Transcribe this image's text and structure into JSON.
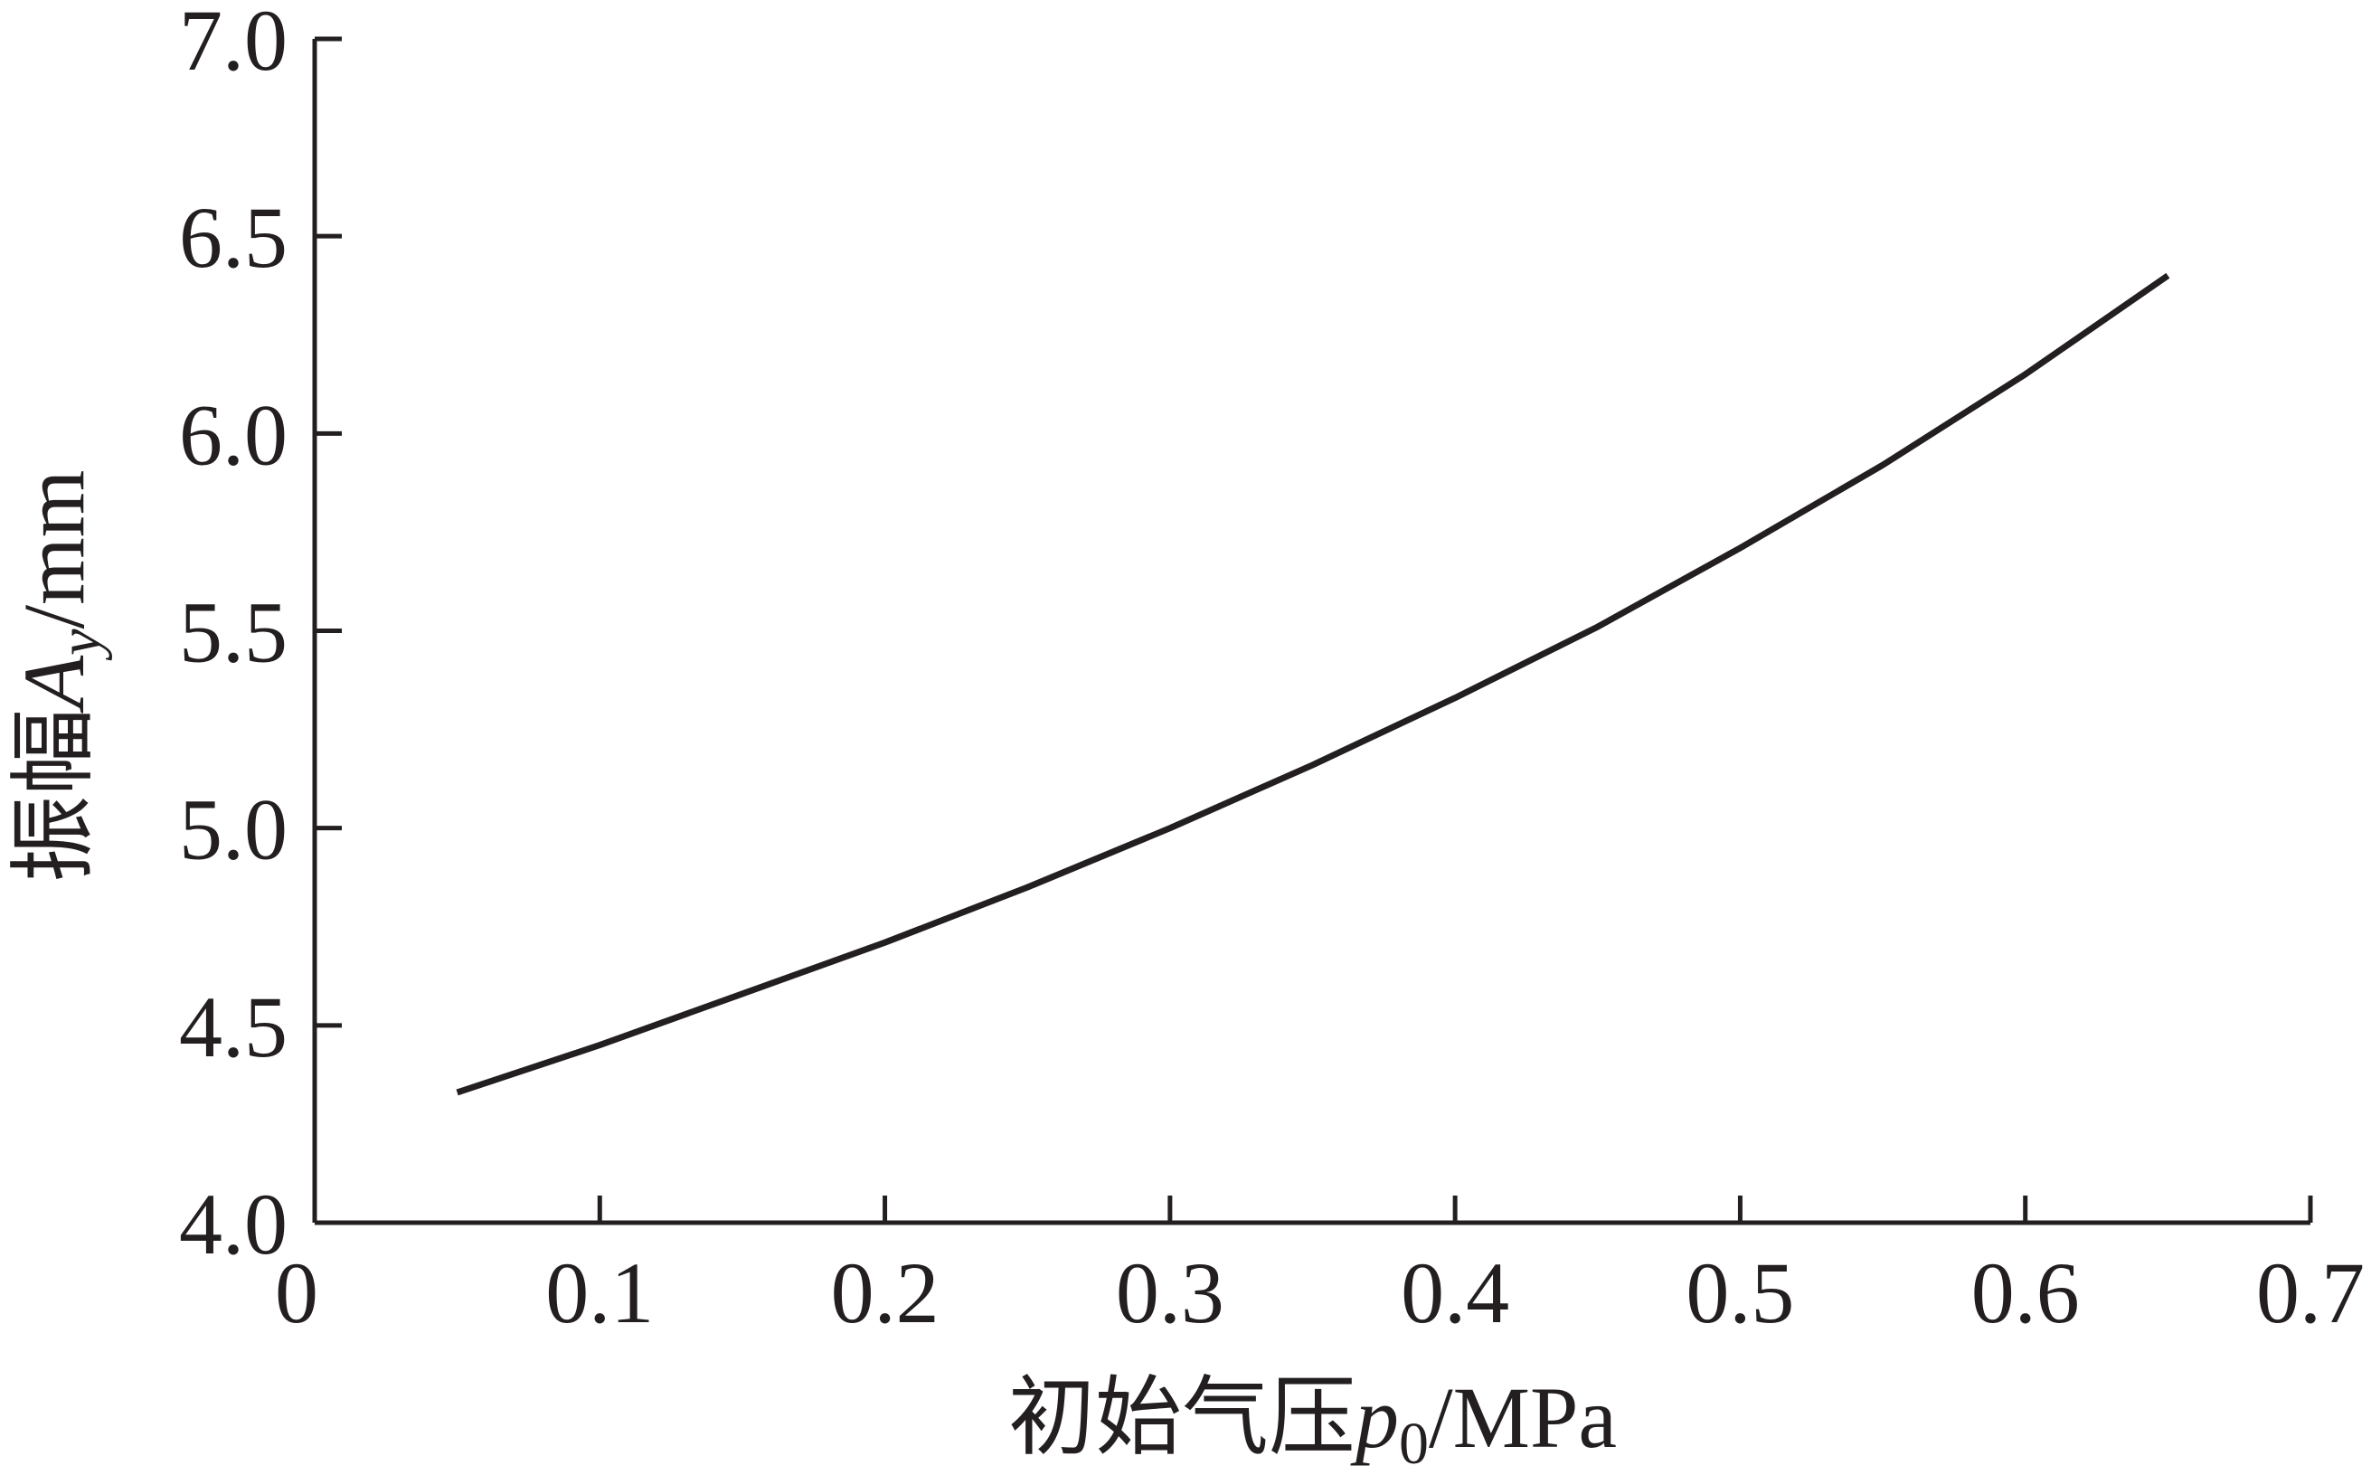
{
  "chart_data": {
    "type": "line",
    "xlabel": {
      "prefix": "初始气压",
      "symbol": "p",
      "subscript": "0",
      "unit": "/MPa"
    },
    "ylabel": {
      "prefix": "振幅",
      "symbol": "A",
      "subscript": "y",
      "unit": "/mm"
    },
    "xlim": [
      0,
      0.7
    ],
    "ylim": [
      4.0,
      7.0
    ],
    "x_ticks": [
      {
        "value": 0,
        "label": "0"
      },
      {
        "value": 0.1,
        "label": "0.1"
      },
      {
        "value": 0.2,
        "label": "0.2"
      },
      {
        "value": 0.3,
        "label": "0.3"
      },
      {
        "value": 0.4,
        "label": "0.4"
      },
      {
        "value": 0.5,
        "label": "0.5"
      },
      {
        "value": 0.6,
        "label": "0.6"
      },
      {
        "value": 0.7,
        "label": "0.7"
      }
    ],
    "y_ticks": [
      {
        "value": 4.0,
        "label": "4.0"
      },
      {
        "value": 4.5,
        "label": "4.5"
      },
      {
        "value": 5.0,
        "label": "5.0"
      },
      {
        "value": 5.5,
        "label": "5.5"
      },
      {
        "value": 6.0,
        "label": "6.0"
      },
      {
        "value": 6.5,
        "label": "6.5"
      },
      {
        "value": 7.0,
        "label": "7.0"
      }
    ],
    "grid": false,
    "series": [
      {
        "color": "#231f20",
        "x": [
          0.05,
          0.1,
          0.15,
          0.2,
          0.25,
          0.3,
          0.35,
          0.4,
          0.45,
          0.5,
          0.55,
          0.6,
          0.65
        ],
        "y": [
          4.33,
          4.45,
          4.58,
          4.71,
          4.85,
          5.0,
          5.16,
          5.33,
          5.51,
          5.71,
          5.92,
          6.15,
          6.4
        ]
      }
    ]
  }
}
